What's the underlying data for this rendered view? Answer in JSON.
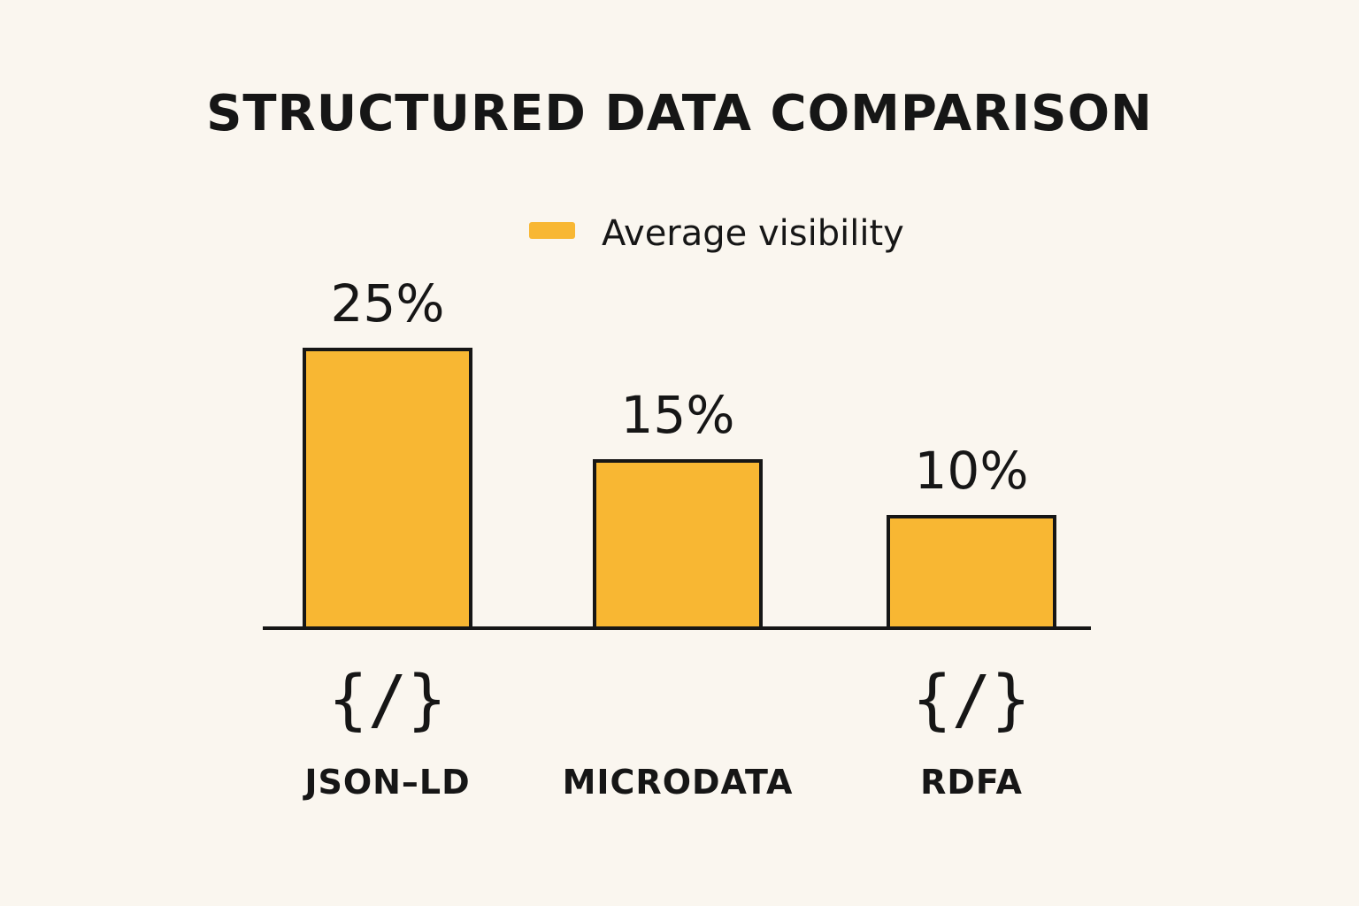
{
  "chart_data": {
    "type": "bar",
    "title": "STRUCTURED DATA COMPARISON",
    "categories": [
      "JSON–LD",
      "MICRODATA",
      "RDFA"
    ],
    "series": [
      {
        "name": "Average visibility",
        "values": [
          25,
          15,
          10
        ],
        "value_labels": [
          "25%",
          "15%",
          "10%"
        ],
        "color": "#F8B733"
      }
    ],
    "ylim": [
      0,
      25
    ],
    "grid": false,
    "legend_position": "top-center",
    "category_icons": [
      "code-icon",
      null,
      "code-icon"
    ],
    "icon_glyph": "{/}"
  },
  "colors": {
    "background": "#FAF6EF",
    "bar_fill": "#F8B733",
    "stroke": "#161616"
  }
}
